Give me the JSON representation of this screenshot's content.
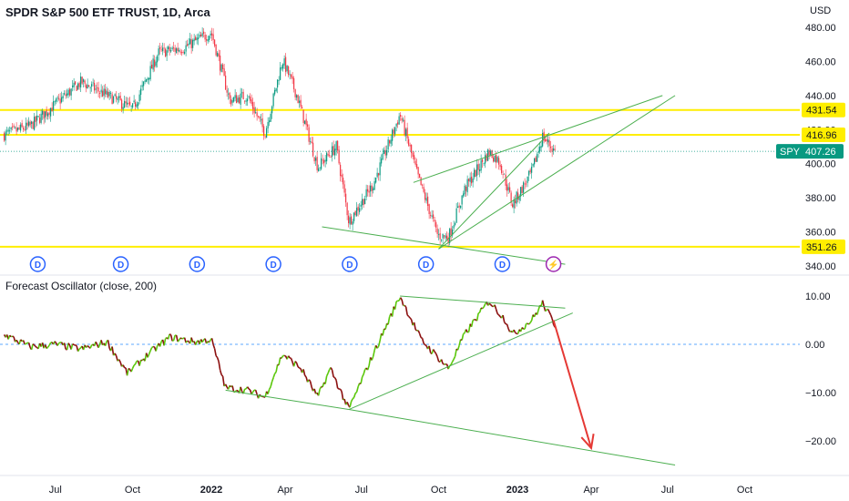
{
  "header": {
    "title": "SPDR S&P 500 ETF TRUST, 1D, Arca",
    "currency": "USD"
  },
  "oscillator": {
    "title": "Forecast Oscillator (close, 200)"
  },
  "colors": {
    "up": "#089981",
    "down": "#f23645",
    "level": "#ffee00",
    "trendline": "#4caf50",
    "osc_up": "#5ac70a",
    "osc_down": "#8b0f0f",
    "arrow": "#e53935",
    "event_icon": "#2962ff",
    "spy_badge": "#089981"
  },
  "chart_data": [
    {
      "type": "candlestick",
      "title": "SPDR S&P 500 ETF TRUST, 1D, Arca",
      "symbol": "SPY",
      "last_price": "407.26",
      "y_axis_ticks": [
        "480.00",
        "460.00",
        "440.00",
        "420.00",
        "400.00",
        "380.00",
        "360.00",
        "340.00"
      ],
      "ylim": [
        336,
        487
      ],
      "x_axis_ticks": [
        "Jul",
        "Oct",
        "2022",
        "Apr",
        "Jul",
        "Oct",
        "2023",
        "Apr",
        "Jul",
        "Oct"
      ],
      "close_path": [
        [
          "2021-05-01",
          417
        ],
        [
          "2021-06-01",
          422
        ],
        [
          "2021-07-01",
          435
        ],
        [
          "2021-08-01",
          448
        ],
        [
          "2021-09-01",
          440
        ],
        [
          "2021-10-01",
          432
        ],
        [
          "2021-11-01",
          465
        ],
        [
          "2021-12-01",
          468
        ],
        [
          "2022-01-03",
          477
        ],
        [
          "2022-01-25",
          437
        ],
        [
          "2022-02-15",
          440
        ],
        [
          "2022-03-08",
          418
        ],
        [
          "2022-03-29",
          461
        ],
        [
          "2022-04-15",
          440
        ],
        [
          "2022-05-10",
          398
        ],
        [
          "2022-06-01",
          410
        ],
        [
          "2022-06-16",
          366
        ],
        [
          "2022-07-15",
          388
        ],
        [
          "2022-08-16",
          429
        ],
        [
          "2022-09-06",
          393
        ],
        [
          "2022-09-30",
          358
        ],
        [
          "2022-10-13",
          357
        ],
        [
          "2022-11-01",
          385
        ],
        [
          "2022-11-30",
          407
        ],
        [
          "2022-12-13",
          401
        ],
        [
          "2022-12-28",
          376
        ],
        [
          "2023-01-20",
          395
        ],
        [
          "2023-02-02",
          416
        ],
        [
          "2023-02-17",
          407
        ]
      ],
      "horizontal_levels": [
        "431.54",
        "416.96",
        "351.26"
      ],
      "trendlines": [
        {
          "from": [
            "2022-05-15",
            363
          ],
          "to": [
            "2023-03-01",
            341
          ]
        },
        {
          "from": [
            "2022-09-01",
            389
          ],
          "to": [
            "2023-06-25",
            440
          ]
        },
        {
          "from": [
            "2022-10-01",
            350
          ],
          "to": [
            "2023-02-10",
            418
          ]
        },
        {
          "from": [
            "2022-10-01",
            350
          ],
          "to": [
            "2023-07-10",
            440
          ]
        }
      ],
      "event_markers": [
        {
          "date": "2021-06-10",
          "label": "D"
        },
        {
          "date": "2021-09-17",
          "label": "D"
        },
        {
          "date": "2021-12-17",
          "label": "D"
        },
        {
          "date": "2022-03-18",
          "label": "D"
        },
        {
          "date": "2022-06-17",
          "label": "D"
        },
        {
          "date": "2022-09-16",
          "label": "D"
        },
        {
          "date": "2022-12-16",
          "label": "D"
        },
        {
          "date": "2023-02-15",
          "label": "⚡"
        }
      ]
    },
    {
      "type": "line",
      "title": "Forecast Oscillator (close, 200)",
      "y_axis_ticks": [
        "10.00",
        "0.00",
        "−10.00",
        "−20.00"
      ],
      "ylim": [
        -25,
        12
      ],
      "zero_line": true,
      "value_path": [
        [
          "2021-05-01",
          2
        ],
        [
          "2021-06-01",
          -0.5
        ],
        [
          "2021-07-01",
          0
        ],
        [
          "2021-08-01",
          -1
        ],
        [
          "2021-09-01",
          0.5
        ],
        [
          "2021-09-25",
          -6
        ],
        [
          "2021-10-20",
          -2
        ],
        [
          "2021-11-15",
          1.5
        ],
        [
          "2021-12-15",
          0.5
        ],
        [
          "2022-01-03",
          1
        ],
        [
          "2022-01-20",
          -9
        ],
        [
          "2022-02-15",
          -9.5
        ],
        [
          "2022-03-08",
          -11
        ],
        [
          "2022-03-29",
          -2
        ],
        [
          "2022-04-20",
          -5
        ],
        [
          "2022-05-10",
          -11
        ],
        [
          "2022-05-25",
          -5
        ],
        [
          "2022-06-16",
          -13.5
        ],
        [
          "2022-07-10",
          -4
        ],
        [
          "2022-08-16",
          10
        ],
        [
          "2022-09-10",
          1
        ],
        [
          "2022-10-13",
          -5
        ],
        [
          "2022-11-01",
          2
        ],
        [
          "2022-11-30",
          9
        ],
        [
          "2022-12-20",
          5
        ],
        [
          "2022-12-28",
          2
        ],
        [
          "2023-01-20",
          5
        ],
        [
          "2023-02-02",
          8.5
        ],
        [
          "2023-02-17",
          4
        ]
      ],
      "trendlines": [
        {
          "from": [
            "2022-08-16",
            10
          ],
          "to": [
            "2023-03-01",
            7.5
          ]
        },
        {
          "from": [
            "2022-06-16",
            -13.5
          ],
          "to": [
            "2023-03-10",
            6.5
          ]
        },
        {
          "from": [
            "2022-01-20",
            -9.5
          ],
          "to": [
            "2022-06-16",
            -13.5
          ]
        },
        {
          "from": [
            "2022-06-16",
            -13.5
          ],
          "to": [
            "2023-07-10",
            -25
          ]
        }
      ],
      "projection_arrow": {
        "from": [
          "2023-02-15",
          5
        ],
        "to": [
          "2023-04-01",
          -21.5
        ]
      }
    }
  ]
}
